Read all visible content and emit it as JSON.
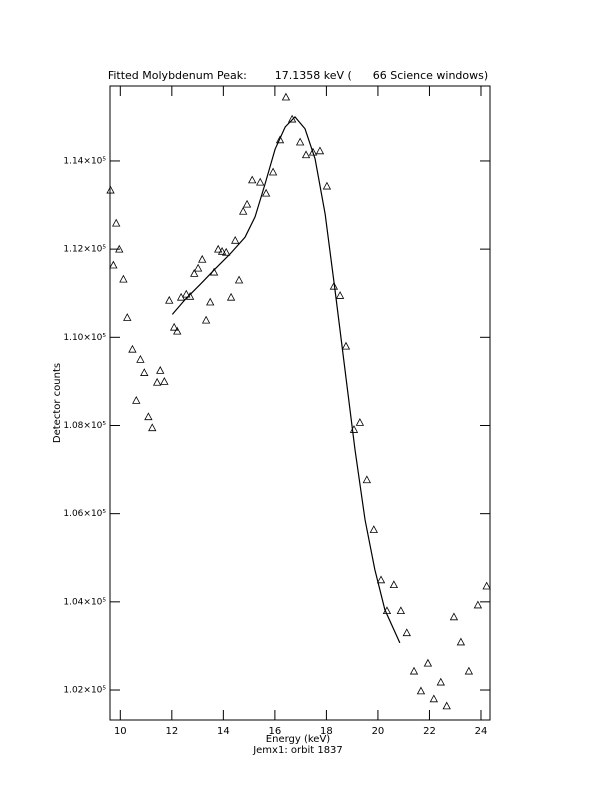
{
  "chart_data": {
    "type": "scatter",
    "title": "Fitted Molybdenum Peak:        17.1358 keV (      66 Science windows)",
    "x_label": "Energy (keV)",
    "subtitle": "Jemx1: orbit 1837",
    "y_label": "Detector counts",
    "xlim": [
      9.6,
      24.35
    ],
    "ylim": [
      101320,
      115700
    ],
    "xticks": [
      10,
      12,
      14,
      16,
      18,
      20,
      22,
      24
    ],
    "yticks": [
      {
        "value": 102000,
        "label": "1.02×10⁵"
      },
      {
        "value": 104000,
        "label": "1.04×10⁵"
      },
      {
        "value": 106000,
        "label": "1.06×10⁵"
      },
      {
        "value": 108000,
        "label": "1.08×10⁵"
      },
      {
        "value": 110000,
        "label": "1.10×10⁵"
      },
      {
        "value": 112000,
        "label": "1.12×10⁵"
      },
      {
        "value": 114000,
        "label": "1.14×10⁵"
      }
    ],
    "series": [
      {
        "type": "scatter",
        "marker": "triangle",
        "color": "#000000",
        "x": [
          9.62,
          9.73,
          9.84,
          9.96,
          10.12,
          10.27,
          10.47,
          10.62,
          10.78,
          10.93,
          11.09,
          11.24,
          11.43,
          11.55,
          11.71,
          11.9,
          12.09,
          12.21,
          12.36,
          12.56,
          12.71,
          12.87,
          13.02,
          13.18,
          13.33,
          13.49,
          13.64,
          13.8,
          13.95,
          14.11,
          14.3,
          14.46,
          14.61,
          14.77,
          14.92,
          15.12,
          15.43,
          15.66,
          15.93,
          16.2,
          16.43,
          16.67,
          16.98,
          17.21,
          17.48,
          17.75,
          18.02,
          18.29,
          18.53,
          18.76,
          19.07,
          19.3,
          19.57,
          19.84,
          20.12,
          20.35,
          20.62,
          20.89,
          21.12,
          21.4,
          21.67,
          21.94,
          22.17,
          22.44,
          22.67,
          22.95,
          23.22,
          23.53,
          23.88,
          24.22
        ],
        "values": [
          113340,
          111640,
          112590,
          112000,
          111320,
          110450,
          109730,
          108570,
          109500,
          109200,
          108200,
          107950,
          108980,
          109250,
          109000,
          110840,
          110230,
          110140,
          110910,
          110980,
          110930,
          111450,
          111570,
          111770,
          110390,
          110800,
          111480,
          112000,
          111950,
          111930,
          110910,
          112200,
          111300,
          112860,
          113020,
          113570,
          113520,
          113270,
          113750,
          114480,
          115450,
          114950,
          114430,
          114140,
          114200,
          114230,
          113430,
          111160,
          110950,
          109800,
          107910,
          108070,
          106770,
          105640,
          104500,
          103800,
          104390,
          103800,
          103300,
          102430,
          101980,
          102610,
          101800,
          102180,
          101640,
          103660,
          103090,
          102430,
          103930,
          104360
        ]
      },
      {
        "type": "line",
        "color": "#000000",
        "x": [
          12.02,
          12.52,
          13.1,
          13.68,
          14.26,
          14.84,
          15.23,
          15.62,
          16.01,
          16.4,
          16.78,
          17.17,
          17.56,
          17.95,
          18.33,
          18.72,
          19.11,
          19.5,
          19.88,
          20.27,
          20.85
        ],
        "values": [
          110520,
          110860,
          111200,
          111550,
          111890,
          112270,
          112730,
          113480,
          114270,
          114770,
          115000,
          114730,
          114050,
          112800,
          111090,
          109270,
          107450,
          105860,
          104730,
          103820,
          103070
        ]
      }
    ]
  }
}
